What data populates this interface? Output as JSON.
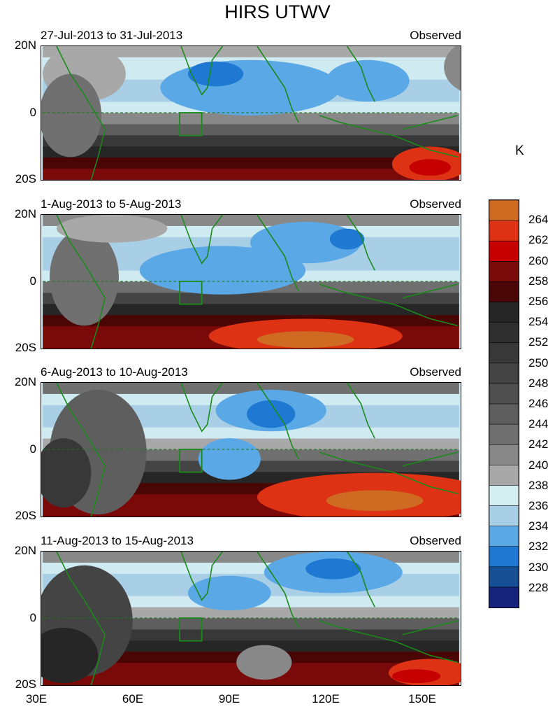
{
  "title": "HIRS UTWV",
  "unit": "K",
  "panels": [
    {
      "period": "27-Jul-2013 to 31-Jul-2013",
      "source": "Observed"
    },
    {
      "period": "1-Aug-2013 to 5-Aug-2013",
      "source": "Observed"
    },
    {
      "period": "6-Aug-2013 to 10-Aug-2013",
      "source": "Observed"
    },
    {
      "period": "11-Aug-2013 to 15-Aug-2013",
      "source": "Observed"
    }
  ],
  "lat_labels": [
    "20N",
    "0",
    "20S"
  ],
  "lon_labels": [
    "30E",
    "60E",
    "90E",
    "120E",
    "150E"
  ],
  "colorbar": {
    "levels": [
      "264",
      "262",
      "260",
      "258",
      "256",
      "254",
      "252",
      "250",
      "248",
      "246",
      "244",
      "242",
      "240",
      "238",
      "236",
      "234",
      "232",
      "230",
      "228"
    ],
    "colors": [
      "#cf6a22",
      "#dd3214",
      "#c60000",
      "#7a0a0a",
      "#4a0505",
      "#262626",
      "#2f2f2f",
      "#383838",
      "#444444",
      "#505050",
      "#5e5e5e",
      "#707070",
      "#888888",
      "#a8a8a8",
      "#d5eef2",
      "#a9cfe6",
      "#5aa8e6",
      "#1f78d1",
      "#164f94",
      "#15237a"
    ]
  }
}
